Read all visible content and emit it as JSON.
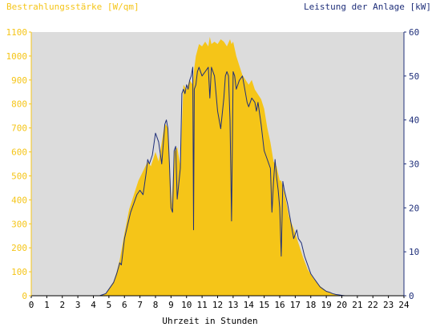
{
  "chart_data": [
    {
      "type": "area",
      "ylabel": "Bestrahlungsstärke [W/qm]",
      "xlabel": "Uhrzeit in Stunden",
      "xlim": [
        0,
        24
      ],
      "ylim": [
        0,
        1100
      ],
      "xticks": [
        "0",
        "1",
        "2",
        "3",
        "4",
        "5",
        "6",
        "7",
        "8",
        "9",
        "10",
        "11",
        "12",
        "13",
        "14",
        "15",
        "16",
        "17",
        "18",
        "19",
        "20",
        "21",
        "22",
        "23",
        "24"
      ],
      "yticks_left": [
        "0",
        "100",
        "200",
        "300",
        "400",
        "500",
        "600",
        "700",
        "800",
        "900",
        "1000",
        "1100"
      ],
      "series": [
        {
          "color": "#f5c518",
          "x": [
            0,
            4.4,
            4.8,
            5.0,
            5.3,
            5.5,
            5.7,
            6.0,
            6.3,
            6.6,
            6.9,
            7.2,
            7.5,
            7.7,
            8.0,
            8.2,
            8.4,
            8.6,
            8.8,
            8.95,
            9.05,
            9.2,
            9.4,
            9.6,
            9.8,
            10.0,
            10.2,
            10.4,
            10.5,
            10.6,
            10.8,
            11.0,
            11.2,
            11.4,
            11.5,
            11.6,
            11.8,
            12.0,
            12.2,
            12.4,
            12.6,
            12.8,
            12.9,
            13.0,
            13.2,
            13.4,
            13.6,
            13.8,
            14.0,
            14.2,
            14.4,
            14.6,
            14.8,
            15.0,
            15.2,
            15.4,
            15.6,
            15.8,
            16.0,
            16.1,
            16.3,
            16.6,
            16.9,
            17.2,
            17.5,
            17.8,
            18.2,
            18.6,
            19.0,
            19.4,
            19.8,
            20.0,
            24
          ],
          "values": [
            0,
            0,
            10,
            30,
            60,
            100,
            150,
            260,
            360,
            420,
            480,
            520,
            560,
            540,
            600,
            560,
            640,
            720,
            700,
            500,
            380,
            600,
            620,
            540,
            880,
            860,
            900,
            880,
            950,
            1000,
            1050,
            1040,
            1060,
            1040,
            1080,
            1050,
            1060,
            1050,
            1070,
            1060,
            1040,
            1070,
            1050,
            1060,
            1000,
            960,
            920,
            900,
            880,
            900,
            860,
            840,
            820,
            780,
            700,
            640,
            560,
            540,
            480,
            480,
            430,
            330,
            280,
            220,
            160,
            110,
            70,
            40,
            20,
            8,
            2,
            0,
            0
          ]
        }
      ]
    },
    {
      "type": "line",
      "ylabel": "Leistung der Anlage [kW]",
      "xlim": [
        0,
        24
      ],
      "ylim": [
        0,
        60
      ],
      "yticks_right": [
        "0",
        "10",
        "20",
        "30",
        "40",
        "50",
        "60"
      ],
      "series": [
        {
          "color": "#1f2f7a",
          "x": [
            0,
            4.4,
            4.8,
            5.0,
            5.3,
            5.5,
            5.7,
            5.8,
            6.0,
            6.2,
            6.4,
            6.6,
            6.8,
            7.0,
            7.2,
            7.4,
            7.5,
            7.6,
            7.8,
            8.0,
            8.2,
            8.4,
            8.6,
            8.7,
            8.8,
            8.9,
            9.0,
            9.1,
            9.2,
            9.3,
            9.4,
            9.6,
            9.7,
            9.8,
            9.9,
            10.0,
            10.1,
            10.2,
            10.3,
            10.4,
            10.45,
            10.5,
            10.6,
            10.7,
            10.8,
            11.0,
            11.2,
            11.4,
            11.5,
            11.6,
            11.7,
            11.8,
            12.0,
            12.2,
            12.4,
            12.5,
            12.6,
            12.7,
            12.8,
            12.9,
            13.0,
            13.1,
            13.2,
            13.4,
            13.6,
            13.8,
            13.9,
            14.0,
            14.2,
            14.4,
            14.5,
            14.6,
            14.8,
            15.0,
            15.2,
            15.4,
            15.5,
            15.6,
            15.7,
            15.8,
            15.9,
            16.0,
            16.1,
            16.2,
            16.3,
            16.5,
            16.7,
            16.9,
            17.0,
            17.1,
            17.2,
            17.4,
            17.6,
            17.8,
            18.0,
            18.2,
            18.4,
            18.6,
            18.8,
            19.0,
            19.2,
            19.4,
            19.6,
            19.8,
            20.0,
            20.2,
            24
          ],
          "values": [
            0,
            0,
            0.5,
            1.5,
            3,
            5,
            7.5,
            7,
            13,
            16,
            19,
            21,
            23,
            24,
            23,
            28,
            31,
            30,
            32,
            37,
            35,
            30,
            39,
            40,
            38,
            30,
            20,
            19,
            33,
            34,
            22,
            29,
            46,
            47,
            46,
            48,
            47,
            49,
            50,
            52,
            15,
            47,
            48,
            51,
            52,
            50,
            51,
            52,
            45,
            52,
            51,
            50,
            42,
            38,
            45,
            50,
            51,
            50,
            40,
            17,
            51,
            50,
            47,
            49,
            50,
            46,
            44,
            43,
            45,
            44,
            42,
            44,
            39,
            33,
            31,
            29,
            19,
            26,
            31,
            27,
            24,
            20,
            9,
            26,
            24,
            21,
            17,
            13,
            14,
            15,
            13,
            12,
            9,
            7,
            5,
            4,
            3,
            2,
            1.5,
            1,
            0.8,
            0.5,
            0.3,
            0.2,
            0.1,
            0,
            0
          ]
        }
      ]
    }
  ]
}
